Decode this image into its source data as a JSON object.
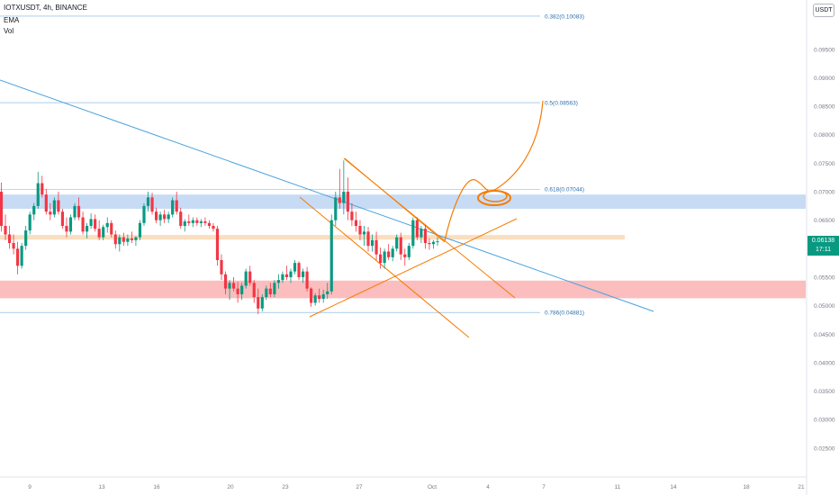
{
  "header": {
    "symbol_line": "IOTXUSDT, 4h, BINANCE",
    "indicator_1": "EMA",
    "indicator_2": "Vol"
  },
  "currency_badge": "USDT",
  "last_price": {
    "price": "0.06138",
    "countdown": "17:11",
    "color": "#089981"
  },
  "colors": {
    "up": "#089981",
    "down": "#f23645",
    "fib_line": "#5b9bd5",
    "trendline": "#4aa3df",
    "drawing": "#f57c00",
    "resistance_zone": "#b5cff2",
    "mid_zone": "#f9d6b0",
    "support_zone": "#f9a7a7",
    "grid_text": "#787b86"
  },
  "chart_data": {
    "type": "candlestick",
    "y_axis": {
      "range": [
        0.0215,
        0.1035
      ],
      "ticks": [
        "0.02500",
        "0.03000",
        "0.03500",
        "0.04000",
        "0.04500",
        "0.05000",
        "0.05500",
        "0.06000",
        "0.06500",
        "0.07000",
        "0.07500",
        "0.08000",
        "0.08500",
        "0.09000",
        "0.09500"
      ]
    },
    "x_axis": {
      "ticks": [
        "9",
        "13",
        "16",
        "20",
        "23",
        "27",
        "Oct",
        "4",
        "7",
        "11",
        "14",
        "18",
        "21"
      ]
    },
    "fib_levels": [
      {
        "label": "0.382(0.10083)",
        "price": 0.10083
      },
      {
        "label": "0.5(0.08563)",
        "price": 0.08563
      },
      {
        "label": "0.618(0.07044)",
        "price": 0.07044
      },
      {
        "label": "0.786(0.04881)",
        "price": 0.04881
      }
    ],
    "zones": [
      {
        "name": "resistance",
        "from": 0.067,
        "to": 0.0695
      },
      {
        "name": "mid",
        "from": 0.0616,
        "to": 0.0624
      },
      {
        "name": "support",
        "from": 0.0513,
        "to": 0.0544
      }
    ],
    "candles_ohlc": [
      [
        0.07,
        0.0716,
        0.063,
        0.064
      ],
      [
        0.064,
        0.066,
        0.0615,
        0.0625
      ],
      [
        0.0625,
        0.064,
        0.06,
        0.061
      ],
      [
        0.061,
        0.0625,
        0.059,
        0.06
      ],
      [
        0.06,
        0.0612,
        0.0555,
        0.057
      ],
      [
        0.057,
        0.061,
        0.0565,
        0.0605
      ],
      [
        0.0605,
        0.064,
        0.0598,
        0.0632
      ],
      [
        0.0632,
        0.0665,
        0.0625,
        0.066
      ],
      [
        0.066,
        0.068,
        0.065,
        0.0675
      ],
      [
        0.0675,
        0.0735,
        0.067,
        0.0715
      ],
      [
        0.0715,
        0.0728,
        0.069,
        0.0695
      ],
      [
        0.0695,
        0.0705,
        0.066,
        0.0665
      ],
      [
        0.0665,
        0.068,
        0.065,
        0.066
      ],
      [
        0.066,
        0.069,
        0.0655,
        0.0685
      ],
      [
        0.0685,
        0.07,
        0.066,
        0.0665
      ],
      [
        0.0665,
        0.067,
        0.0635,
        0.064
      ],
      [
        0.064,
        0.0655,
        0.062,
        0.063
      ],
      [
        0.063,
        0.066,
        0.0625,
        0.0655
      ],
      [
        0.0655,
        0.068,
        0.065,
        0.0675
      ],
      [
        0.0675,
        0.069,
        0.065,
        0.0655
      ],
      [
        0.0655,
        0.0665,
        0.0625,
        0.063
      ],
      [
        0.063,
        0.0645,
        0.0618,
        0.064
      ],
      [
        0.064,
        0.0662,
        0.0635,
        0.0652
      ],
      [
        0.0652,
        0.066,
        0.063,
        0.0635
      ],
      [
        0.0635,
        0.065,
        0.0615,
        0.062
      ],
      [
        0.062,
        0.0642,
        0.0615,
        0.0638
      ],
      [
        0.0638,
        0.0655,
        0.0628,
        0.0645
      ],
      [
        0.0645,
        0.065,
        0.062,
        0.0625
      ],
      [
        0.0625,
        0.0632,
        0.06,
        0.0608
      ],
      [
        0.0608,
        0.0625,
        0.0595,
        0.062
      ],
      [
        0.062,
        0.0628,
        0.0605,
        0.0612
      ],
      [
        0.0612,
        0.0625,
        0.0605,
        0.0618
      ],
      [
        0.0618,
        0.063,
        0.061,
        0.0615
      ],
      [
        0.0615,
        0.0622,
        0.0605,
        0.062
      ],
      [
        0.062,
        0.065,
        0.0615,
        0.0645
      ],
      [
        0.0645,
        0.068,
        0.064,
        0.0675
      ],
      [
        0.0675,
        0.07,
        0.0665,
        0.069
      ],
      [
        0.069,
        0.0698,
        0.066,
        0.0665
      ],
      [
        0.0665,
        0.0672,
        0.0645,
        0.065
      ],
      [
        0.065,
        0.0665,
        0.064,
        0.066
      ],
      [
        0.066,
        0.0668,
        0.0645,
        0.0652
      ],
      [
        0.0652,
        0.0665,
        0.0645,
        0.066
      ],
      [
        0.066,
        0.069,
        0.0655,
        0.0685
      ],
      [
        0.0685,
        0.07,
        0.066,
        0.0665
      ],
      [
        0.0665,
        0.0672,
        0.0635,
        0.064
      ],
      [
        0.064,
        0.0652,
        0.063,
        0.0648
      ],
      [
        0.0648,
        0.066,
        0.064,
        0.0645
      ],
      [
        0.0645,
        0.0655,
        0.0638,
        0.065
      ],
      [
        0.065,
        0.0655,
        0.064,
        0.0645
      ],
      [
        0.0645,
        0.0652,
        0.0638,
        0.0648
      ],
      [
        0.0648,
        0.0655,
        0.064,
        0.0645
      ],
      [
        0.0645,
        0.065,
        0.0635,
        0.064
      ],
      [
        0.064,
        0.0645,
        0.063,
        0.0635
      ],
      [
        0.0635,
        0.064,
        0.057,
        0.058
      ],
      [
        0.058,
        0.059,
        0.0545,
        0.0555
      ],
      [
        0.0555,
        0.056,
        0.052,
        0.053
      ],
      [
        0.053,
        0.0545,
        0.051,
        0.054
      ],
      [
        0.054,
        0.055,
        0.0525,
        0.053
      ],
      [
        0.053,
        0.0542,
        0.0505,
        0.052
      ],
      [
        0.052,
        0.054,
        0.051,
        0.0535
      ],
      [
        0.0535,
        0.0565,
        0.053,
        0.056
      ],
      [
        0.056,
        0.057,
        0.0535,
        0.054
      ],
      [
        0.054,
        0.0545,
        0.0505,
        0.0515
      ],
      [
        0.0515,
        0.053,
        0.0485,
        0.0495
      ],
      [
        0.0495,
        0.052,
        0.049,
        0.0515
      ],
      [
        0.0515,
        0.0535,
        0.051,
        0.053
      ],
      [
        0.053,
        0.054,
        0.0515,
        0.052
      ],
      [
        0.052,
        0.0545,
        0.0515,
        0.054
      ],
      [
        0.054,
        0.0555,
        0.053,
        0.0545
      ],
      [
        0.0545,
        0.056,
        0.054,
        0.0555
      ],
      [
        0.0555,
        0.057,
        0.0545,
        0.055
      ],
      [
        0.055,
        0.0565,
        0.054,
        0.056
      ],
      [
        0.056,
        0.058,
        0.0555,
        0.0575
      ],
      [
        0.0575,
        0.0578,
        0.0545,
        0.055
      ],
      [
        0.055,
        0.0565,
        0.054,
        0.056
      ],
      [
        0.056,
        0.0568,
        0.0525,
        0.053
      ],
      [
        0.053,
        0.0532,
        0.0498,
        0.0505
      ],
      [
        0.0505,
        0.0522,
        0.05,
        0.0518
      ],
      [
        0.0518,
        0.053,
        0.0505,
        0.0512
      ],
      [
        0.0512,
        0.0528,
        0.0505,
        0.052
      ],
      [
        0.052,
        0.054,
        0.0512,
        0.0525
      ],
      [
        0.0525,
        0.066,
        0.052,
        0.065
      ],
      [
        0.065,
        0.07,
        0.064,
        0.069
      ],
      [
        0.069,
        0.074,
        0.067,
        0.068
      ],
      [
        0.068,
        0.0755,
        0.066,
        0.07
      ],
      [
        0.07,
        0.0725,
        0.065,
        0.0665
      ],
      [
        0.0665,
        0.068,
        0.064,
        0.065
      ],
      [
        0.065,
        0.0665,
        0.063,
        0.064
      ],
      [
        0.064,
        0.065,
        0.0615,
        0.0625
      ],
      [
        0.0625,
        0.064,
        0.0605,
        0.063
      ],
      [
        0.063,
        0.0638,
        0.0595,
        0.0605
      ],
      [
        0.0605,
        0.0625,
        0.0595,
        0.0615
      ],
      [
        0.0615,
        0.063,
        0.058,
        0.059
      ],
      [
        0.059,
        0.0602,
        0.0565,
        0.0575
      ],
      [
        0.0575,
        0.06,
        0.0565,
        0.0595
      ],
      [
        0.0595,
        0.0608,
        0.058,
        0.0585
      ],
      [
        0.0585,
        0.0605,
        0.0578,
        0.06
      ],
      [
        0.06,
        0.0625,
        0.0595,
        0.062
      ],
      [
        0.062,
        0.0628,
        0.058,
        0.059
      ],
      [
        0.059,
        0.06,
        0.057,
        0.0585
      ],
      [
        0.0585,
        0.061,
        0.058,
        0.0605
      ],
      [
        0.0605,
        0.0655,
        0.06,
        0.065
      ],
      [
        0.065,
        0.0655,
        0.0615,
        0.062
      ],
      [
        0.062,
        0.064,
        0.061,
        0.0635
      ],
      [
        0.0635,
        0.0642,
        0.06,
        0.061
      ],
      [
        0.061,
        0.0618,
        0.0598,
        0.0608
      ],
      [
        0.0608,
        0.0615,
        0.06,
        0.0612
      ],
      [
        0.0612,
        0.062,
        0.0605,
        0.0613
      ]
    ]
  }
}
